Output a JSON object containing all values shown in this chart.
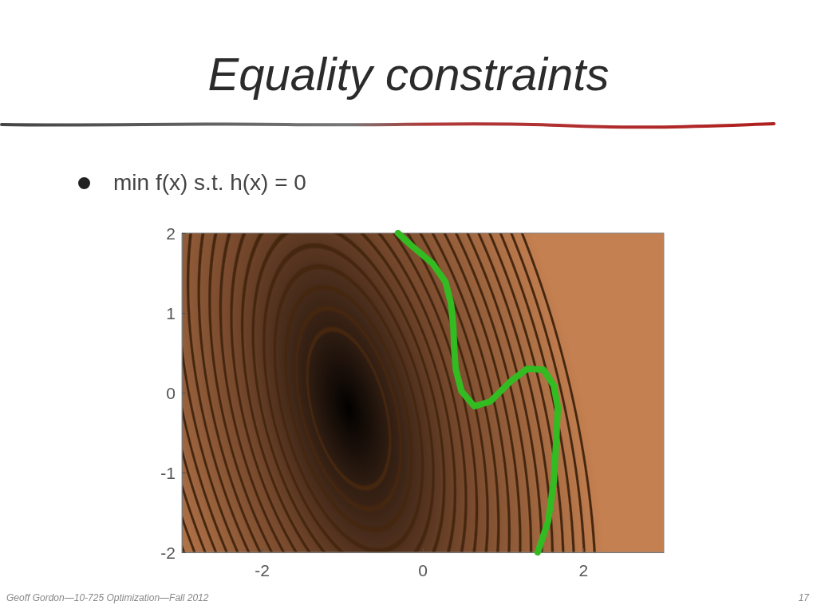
{
  "chart_data": {
    "type": "line",
    "title": "Equality constraints",
    "subtitle": "min f(x) s.t. h(x) = 0",
    "x": [
      -0.31,
      -0.15,
      0.12,
      0.28,
      0.35,
      0.38,
      0.39,
      0.41,
      0.48,
      0.64,
      0.84,
      0.97,
      1.1,
      1.3,
      1.5,
      1.63,
      1.68,
      1.66,
      1.63,
      1.56,
      1.43
    ],
    "values": [
      2.0,
      1.85,
      1.62,
      1.39,
      1.12,
      0.82,
      0.55,
      0.29,
      0.02,
      -0.17,
      -0.11,
      0.02,
      0.15,
      0.3,
      0.29,
      0.09,
      -0.18,
      -0.61,
      -1.11,
      -1.61,
      -2.0
    ],
    "color": "#33bb22",
    "marker": "none",
    "line_style": "solid",
    "xlim": [
      -3,
      3
    ],
    "xticks": [
      -2,
      0,
      2
    ],
    "ylim": [
      -2,
      2
    ],
    "yticks": [
      -2,
      -1,
      0,
      1,
      2
    ],
    "annotations": [
      "Geoff Gordon—10-725 Optimization—Fall 2012",
      "17"
    ]
  }
}
